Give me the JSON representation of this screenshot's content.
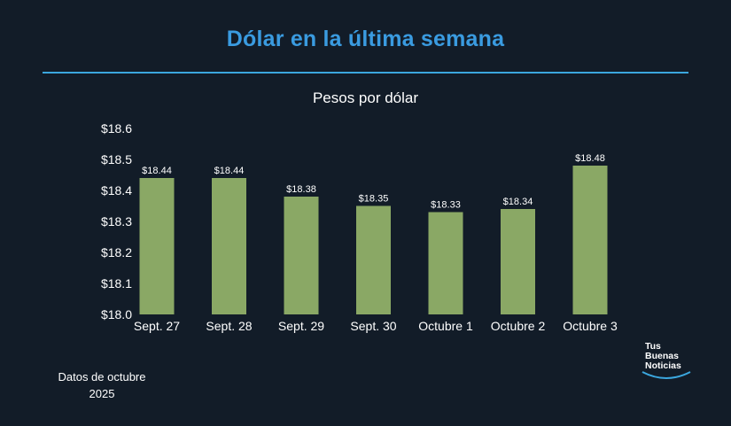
{
  "header": {
    "title": "Dólar en la última semana",
    "accent_color": "#3a9be0"
  },
  "footnote": {
    "line1": "Datos de octubre",
    "line2": "2025"
  },
  "logo": {
    "text": "Tus\nBuenas\nNoticias"
  },
  "chart_data": {
    "type": "bar",
    "title": "Pesos por dólar",
    "xlabel": "",
    "ylabel": "",
    "categories": [
      "Sept. 27",
      "Sept. 28",
      "Sept. 29",
      "Sept. 30",
      "Octubre 1",
      "Octubre 2",
      "Octubre 3"
    ],
    "values": [
      18.44,
      18.44,
      18.38,
      18.35,
      18.33,
      18.34,
      18.48
    ],
    "data_labels": [
      "$18.44",
      "$18.44",
      "$18.38",
      "$18.35",
      "$18.33",
      "$18.34",
      "$18.48"
    ],
    "ylim": [
      18.0,
      18.6
    ],
    "yticks": [
      18.0,
      18.1,
      18.2,
      18.3,
      18.4,
      18.5,
      18.6
    ],
    "ytick_labels": [
      "$18.0",
      "$18.1",
      "$18.2",
      "$18.3",
      "$18.4",
      "$18.5",
      "$18.6"
    ],
    "bar_color": "#8aa865",
    "grid": false,
    "legend": "none"
  }
}
